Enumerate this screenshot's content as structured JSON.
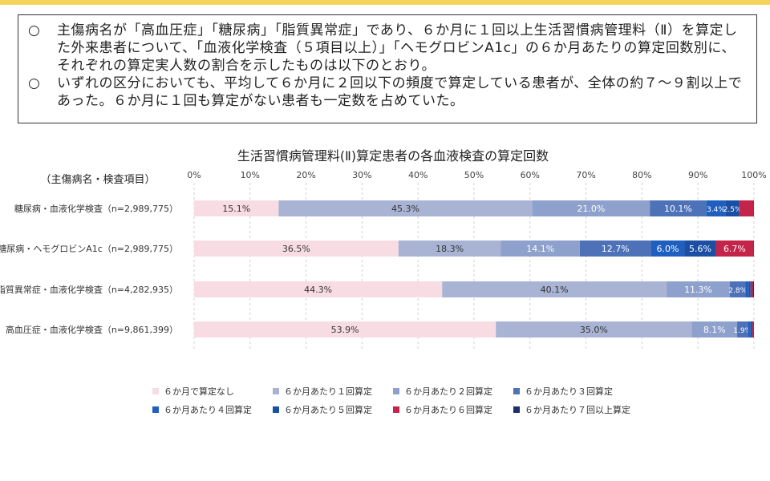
{
  "theme": {
    "top_bar": "#f3d35a",
    "note_border": "#333333"
  },
  "notes": [
    {
      "bullet": "○",
      "text": "主傷病名が「高血圧症」「糖尿病」「脂質異常症」であり、６か月に１回以上生活習慣病管理料（Ⅱ）を算定した外来患者について、「血液化学検査（５項目以上）」「ヘモグロビンA1c」の６か月あたりの算定回数別に、それぞれの算定実人数の割合を示したものは以下のとおり。"
    },
    {
      "bullet": "○",
      "text": "いずれの区分においても、平均して６か月に２回以下の頻度で算定している患者が、全体の約７～９割以上であった。６か月に１回も算定がない患者も一定数を占めていた。"
    }
  ],
  "chart_data": {
    "type": "bar",
    "orientation": "horizontal",
    "stacked": true,
    "title": "生活習慣病管理料(Ⅱ)算定患者の各血液検査の算定回数",
    "row_header": "（主傷病名・検査項目）",
    "xlim": [
      0,
      100
    ],
    "x_ticks": [
      "0%",
      "10%",
      "20%",
      "30%",
      "40%",
      "50%",
      "60%",
      "70%",
      "80%",
      "90%",
      "100%"
    ],
    "grid": true,
    "legend_position": "bottom",
    "categories": [
      "糖尿病・血液化学検査（n=2,989,775）",
      "糖尿病・ヘモグロビンA1c（n=2,989,775）",
      "脂質異常症・血液化学検査（n=4,282,935）",
      "高血圧症・血液化学検査（n=9,861,399）"
    ],
    "series": [
      {
        "name": "６か月で算定なし",
        "color": "#f8dce3",
        "label_color": "#333333",
        "values": [
          15.1,
          36.5,
          44.3,
          53.9
        ],
        "labels": [
          "15.1%",
          "36.5%",
          "44.3%",
          "53.9%"
        ]
      },
      {
        "name": "６か月あたり１回算定",
        "color": "#a9b4d4",
        "label_color": "#333333",
        "values": [
          45.3,
          18.3,
          40.1,
          35.0
        ],
        "labels": [
          "45.3%",
          "18.3%",
          "40.1%",
          "35.0%"
        ]
      },
      {
        "name": "６か月あたり２回算定",
        "color": "#8ea0cc",
        "label_color": "#ffffff",
        "values": [
          21.0,
          14.1,
          11.3,
          8.1
        ],
        "labels": [
          "21.0%",
          "14.1%",
          "11.3%",
          "8.1%"
        ]
      },
      {
        "name": "６か月あたり３回算定",
        "color": "#4d72b8",
        "label_color": "#ffffff",
        "values": [
          10.1,
          12.7,
          2.8,
          1.9
        ],
        "labels": [
          "10.1%",
          "12.7%",
          "2.8%",
          "1.9%"
        ]
      },
      {
        "name": "６か月あたり４回算定",
        "color": "#1f5fc0",
        "label_color": "#ffffff",
        "values": [
          3.4,
          6.0,
          0.6,
          0.5
        ],
        "labels": [
          "3.4%",
          "6.0%",
          "",
          ""
        ]
      },
      {
        "name": "６か月あたり５回算定",
        "color": "#1a4fa3",
        "label_color": "#ffffff",
        "values": [
          2.5,
          5.6,
          0.3,
          0.3
        ],
        "labels": [
          "2.5%",
          "5.6%",
          "",
          ""
        ]
      },
      {
        "name": "６か月あたり６回算定",
        "color": "#c4244a",
        "label_color": "#ffffff",
        "values": [
          2.5,
          6.7,
          0.4,
          0.2
        ],
        "labels": [
          "",
          "6.7%",
          "",
          ""
        ]
      },
      {
        "name": "６か月あたり７回以上算定",
        "color": "#1c2f6b",
        "label_color": "#ffffff",
        "values": [
          0.1,
          0.1,
          0.2,
          0.1
        ],
        "labels": [
          "",
          "",
          "",
          ""
        ]
      }
    ]
  }
}
